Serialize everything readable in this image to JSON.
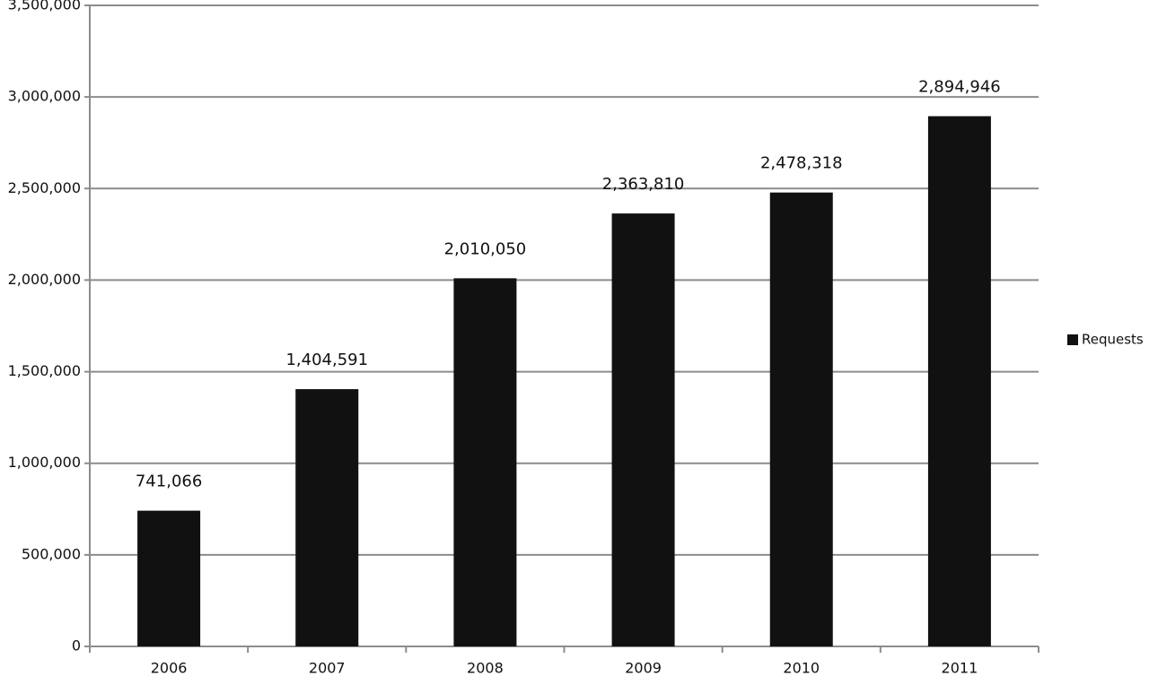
{
  "chart_data": {
    "type": "bar",
    "categories": [
      "2006",
      "2007",
      "2008",
      "2009",
      "2010",
      "2011"
    ],
    "series": [
      {
        "name": "Requests",
        "color": "#111111",
        "values": [
          741066,
          1404591,
          2010050,
          2363810,
          2478318,
          2894946
        ],
        "value_labels": [
          "741,066",
          "1,404,591",
          "2,010,050",
          "2,363,810",
          "2,478,318",
          "2,894,946"
        ]
      }
    ],
    "ylim": [
      0,
      3500000
    ],
    "yticks": [
      0,
      {
        "value": 500000,
        "label": "500,000"
      },
      {
        "value": 1000000,
        "label": "1,000,000"
      },
      {
        "value": 1500000,
        "label": "1,500,000"
      },
      {
        "value": 2000000,
        "label": "2,000,000"
      },
      {
        "value": 2500000,
        "label": "2,500,000"
      },
      {
        "value": 3000000,
        "label": "3,000,000"
      },
      {
        "value": 3500000,
        "label": "3,500,000"
      }
    ],
    "grid": true,
    "legend": "right"
  }
}
